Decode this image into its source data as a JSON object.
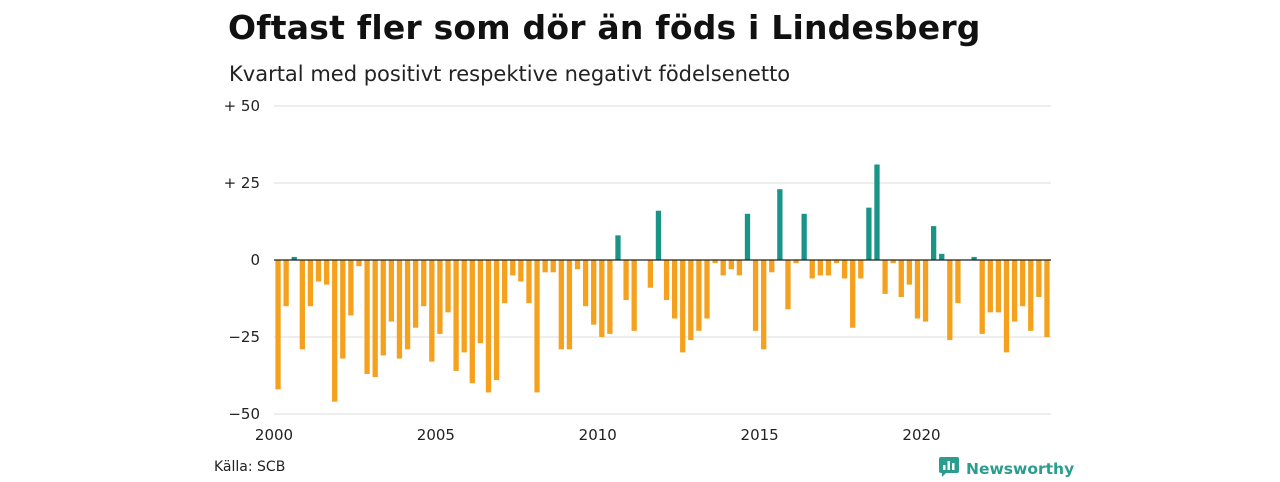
{
  "header": {
    "title": "Oftast fler som dör än föds i Lindesberg",
    "subtitle": "Kvartal med positivt respektive negativt födelsenetto"
  },
  "footer": {
    "source": "Källa: SCB",
    "brand": "Newsworthy"
  },
  "colors": {
    "positive": "#1a9486",
    "negative": "#f5a11e",
    "grid": "#dddddd",
    "zero_line": "#222222",
    "brand": "#2a9d8f"
  },
  "icons": {
    "brand_logo": "bar-chart-speech-bubble-icon"
  },
  "chart_data": {
    "type": "bar",
    "title": "Oftast fler som dör än föds i Lindesberg",
    "subtitle": "Kvartal med positivt respektive negativt födelsenetto",
    "x_ticks": [
      2000,
      2005,
      2010,
      2015,
      2020
    ],
    "y_ticks": [
      50,
      25,
      0,
      -25,
      -50
    ],
    "y_tick_labels": [
      "+ 50",
      "+ 25",
      "0",
      "−25",
      "−50"
    ],
    "ylim": [
      -50,
      50
    ],
    "grid": true,
    "legend": "none",
    "start": "2000 Q1",
    "values": [
      -42,
      -15,
      1,
      -29,
      -15,
      -7,
      -8,
      -46,
      -32,
      -18,
      -2,
      -37,
      -38,
      -31,
      -20,
      -32,
      -29,
      -22,
      -15,
      -33,
      -24,
      -17,
      -36,
      -30,
      -40,
      -27,
      -43,
      -39,
      -14,
      -5,
      -7,
      -14,
      -43,
      -4,
      -4,
      -29,
      -29,
      -3,
      -15,
      -21,
      -25,
      -24,
      8,
      -13,
      -23,
      0,
      -9,
      16,
      -13,
      -19,
      -30,
      -26,
      -23,
      -19,
      -1,
      -5,
      -3,
      -5,
      15,
      -23,
      -29,
      -4,
      23,
      -16,
      -1,
      15,
      -6,
      -5,
      -5,
      -1,
      -6,
      -22,
      -6,
      17,
      31,
      -11,
      -1,
      -12,
      -8,
      -19,
      -20,
      11,
      2,
      -26,
      -14,
      0,
      1,
      -24,
      -17,
      -17,
      -30,
      -20,
      -15,
      -23,
      -12,
      -25
    ]
  }
}
